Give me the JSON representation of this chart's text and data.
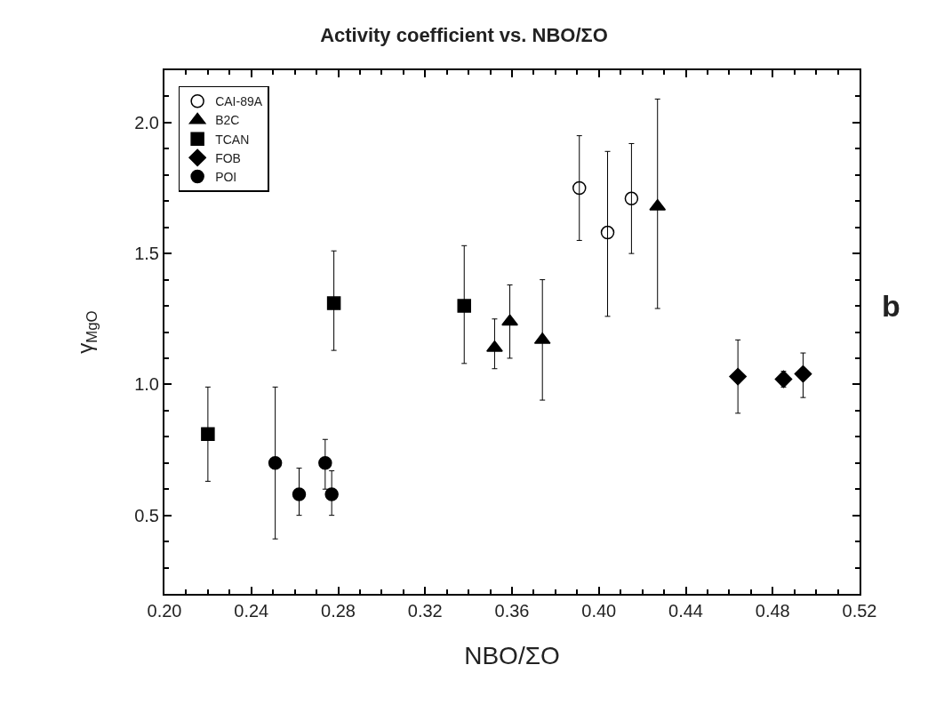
{
  "chart_data": {
    "type": "scatter",
    "title": "Activity coefficient vs. NBO/ΣO",
    "xlabel": "NBO/ΣO",
    "ylabel": "γ$_{MgO}$",
    "annotations": [
      "b"
    ],
    "xlim": [
      0.2,
      0.52
    ],
    "ylim": [
      0.2,
      2.2
    ],
    "xticks": [
      {
        "value": 0.2,
        "label": "0.20"
      },
      {
        "value": 0.21,
        "label": null
      },
      {
        "value": 0.22,
        "label": null
      },
      {
        "value": 0.23,
        "label": null
      },
      {
        "value": 0.24,
        "label": "0.24"
      },
      {
        "value": 0.25,
        "label": null
      },
      {
        "value": 0.26,
        "label": null
      },
      {
        "value": 0.27,
        "label": null
      },
      {
        "value": 0.28,
        "label": "0.28"
      },
      {
        "value": 0.29,
        "label": null
      },
      {
        "value": 0.3,
        "label": null
      },
      {
        "value": 0.31,
        "label": null
      },
      {
        "value": 0.32,
        "label": "0.32"
      },
      {
        "value": 0.33,
        "label": null
      },
      {
        "value": 0.34,
        "label": null
      },
      {
        "value": 0.35,
        "label": null
      },
      {
        "value": 0.36,
        "label": "0.36"
      },
      {
        "value": 0.37,
        "label": null
      },
      {
        "value": 0.38,
        "label": null
      },
      {
        "value": 0.39,
        "label": null
      },
      {
        "value": 0.4,
        "label": "0.40"
      },
      {
        "value": 0.41,
        "label": null
      },
      {
        "value": 0.42,
        "label": null
      },
      {
        "value": 0.43,
        "label": null
      },
      {
        "value": 0.44,
        "label": "0.44"
      },
      {
        "value": 0.45,
        "label": null
      },
      {
        "value": 0.46,
        "label": null
      },
      {
        "value": 0.47,
        "label": null
      },
      {
        "value": 0.48,
        "label": "0.48"
      },
      {
        "value": 0.49,
        "label": null
      },
      {
        "value": 0.5,
        "label": null
      },
      {
        "value": 0.51,
        "label": null
      },
      {
        "value": 0.52,
        "label": "0.52"
      }
    ],
    "yticks": [
      {
        "value": 0.3,
        "label": null
      },
      {
        "value": 0.4,
        "label": null
      },
      0.5,
      {
        "value": 0.6,
        "label": null
      },
      {
        "value": 0.7,
        "label": null
      },
      {
        "value": 0.8,
        "label": null
      },
      {
        "value": 0.9,
        "label": null
      },
      {
        "value": 1.0,
        "label": "1.0"
      },
      {
        "value": 1.1,
        "label": null
      },
      {
        "value": 1.2,
        "label": null
      },
      {
        "value": 1.3,
        "label": null
      },
      {
        "value": 1.4,
        "label": null
      },
      1.5,
      {
        "value": 1.6,
        "label": null
      },
      {
        "value": 1.7,
        "label": null
      },
      {
        "value": 1.8,
        "label": null
      },
      {
        "value": 1.9,
        "label": null
      },
      {
        "value": 2.0,
        "label": "2.0"
      },
      {
        "value": 2.1,
        "label": null
      }
    ],
    "legend": "top left",
    "series": [
      {
        "name": "CAI-89A",
        "color": "#000000",
        "marker": "circle-open",
        "x": [
          0.391,
          0.404,
          0.415
        ],
        "values": [
          1.75,
          1.58,
          1.71
        ],
        "errors": [
          [
            1.55,
            1.95
          ],
          [
            1.26,
            1.89
          ],
          [
            1.5,
            1.92
          ]
        ]
      },
      {
        "name": "B2C",
        "color": "#000000",
        "marker": "triangle",
        "x": [
          0.352,
          0.359,
          0.374,
          0.427
        ],
        "values": [
          1.14,
          1.24,
          1.17,
          1.68
        ],
        "errors": [
          [
            1.06,
            1.25
          ],
          [
            1.1,
            1.38
          ],
          [
            0.94,
            1.4
          ],
          [
            1.29,
            2.09
          ]
        ]
      },
      {
        "name": "TCAN",
        "color": "#000000",
        "marker": "square",
        "x": [
          0.22,
          0.278,
          0.338
        ],
        "values": [
          0.81,
          1.31,
          1.3
        ],
        "errors": [
          [
            0.63,
            0.99
          ],
          [
            1.13,
            1.51
          ],
          [
            1.08,
            1.53
          ]
        ]
      },
      {
        "name": "FOB",
        "color": "#000000",
        "marker": "diamond",
        "x": [
          0.464,
          0.485,
          0.494
        ],
        "values": [
          1.03,
          1.02,
          1.04
        ],
        "errors": [
          [
            0.89,
            1.17
          ],
          [
            0.99,
            1.05
          ],
          [
            0.95,
            1.12
          ]
        ]
      },
      {
        "name": "POI",
        "color": "#000000",
        "marker": "circle",
        "x": [
          0.251,
          0.262,
          0.274,
          0.277
        ],
        "values": [
          0.7,
          0.58,
          0.7,
          0.58
        ],
        "errors": [
          [
            0.41,
            0.99
          ],
          [
            0.5,
            0.68
          ],
          [
            0.6,
            0.79
          ],
          [
            0.5,
            0.67
          ]
        ]
      }
    ]
  }
}
